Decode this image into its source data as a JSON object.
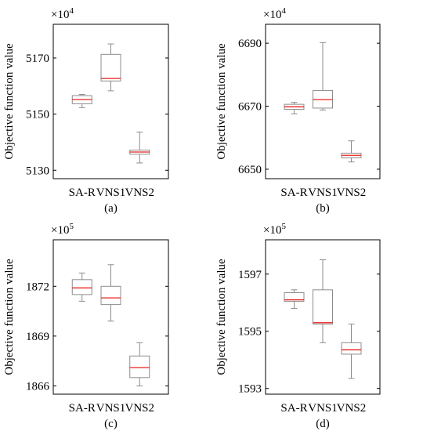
{
  "chart_data": [
    {
      "type": "box",
      "id": "a",
      "caption": "(a)",
      "ylabel": "Objective function value",
      "exponent_label": "×10",
      "exponent_power": "4",
      "ylim": [
        5127,
        5182
      ],
      "yticks": [
        5130,
        5150,
        5170
      ],
      "categories": [
        "SA-R",
        "VNS1",
        "VNS2"
      ],
      "boxes": [
        {
          "name": "SA-R",
          "min": 5152.3,
          "q1": 5153.7,
          "median": 5155.2,
          "q3": 5156.6,
          "max": 5157.0
        },
        {
          "name": "VNS1",
          "min": 5158.3,
          "q1": 5161.8,
          "median": 5162.7,
          "q3": 5171.3,
          "max": 5175.0
        },
        {
          "name": "VNS2",
          "min": 5132.6,
          "q1": 5135.7,
          "median": 5136.5,
          "q3": 5137.2,
          "max": 5143.6
        }
      ]
    },
    {
      "type": "box",
      "id": "b",
      "caption": "(b)",
      "ylabel": "Objective function value",
      "exponent_label": "×10",
      "exponent_power": "4",
      "ylim": [
        6647,
        6696
      ],
      "yticks": [
        6650,
        6670,
        6690
      ],
      "categories": [
        "SA-R",
        "VNS1",
        "VNS2"
      ],
      "boxes": [
        {
          "name": "SA-R",
          "min": 6667.6,
          "q1": 6669.0,
          "median": 6669.8,
          "q3": 6670.6,
          "max": 6671.2
        },
        {
          "name": "VNS1",
          "min": 6668.8,
          "q1": 6669.4,
          "median": 6672.1,
          "q3": 6675.0,
          "max": 6690.2
        },
        {
          "name": "VNS2",
          "min": 6652.3,
          "q1": 6653.6,
          "median": 6654.4,
          "q3": 6655.1,
          "max": 6659.0
        }
      ]
    },
    {
      "type": "box",
      "id": "c",
      "caption": "(c)",
      "ylabel": "Objective function value",
      "exponent_label": "×10",
      "exponent_power": "5",
      "ylim": [
        1865.5,
        1874.8
      ],
      "yticks": [
        1866,
        1869,
        1872
      ],
      "categories": [
        "SA-R",
        "VNS1",
        "VNS2"
      ],
      "boxes": [
        {
          "name": "SA-R",
          "min": 1871.1,
          "q1": 1871.5,
          "median": 1871.9,
          "q3": 1872.4,
          "max": 1872.8
        },
        {
          "name": "VNS1",
          "min": 1869.9,
          "q1": 1870.9,
          "median": 1871.3,
          "q3": 1872.0,
          "max": 1873.3
        },
        {
          "name": "VNS2",
          "min": 1866.0,
          "q1": 1866.5,
          "median": 1867.1,
          "q3": 1867.8,
          "max": 1868.6
        }
      ]
    },
    {
      "type": "box",
      "id": "d",
      "caption": "(d)",
      "ylabel": "Objective function value",
      "exponent_label": "×10",
      "exponent_power": "5",
      "ylim": [
        1592.8,
        1598.2
      ],
      "yticks": [
        1593,
        1595,
        1597
      ],
      "categories": [
        "SA-R",
        "VNS1",
        "VNS2"
      ],
      "boxes": [
        {
          "name": "SA-R",
          "min": 1595.8,
          "q1": 1596.05,
          "median": 1596.1,
          "q3": 1596.35,
          "max": 1596.45
        },
        {
          "name": "VNS1",
          "min": 1594.6,
          "q1": 1595.25,
          "median": 1595.3,
          "q3": 1596.45,
          "max": 1597.5
        },
        {
          "name": "VNS2",
          "min": 1593.35,
          "q1": 1594.2,
          "median": 1594.35,
          "q3": 1594.6,
          "max": 1595.25
        }
      ]
    }
  ]
}
